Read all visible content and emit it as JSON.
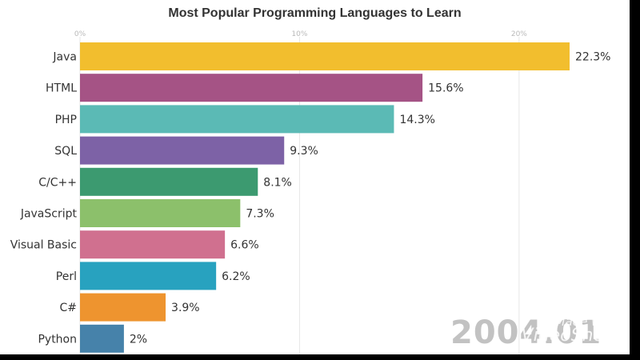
{
  "chart_data": {
    "type": "bar",
    "orientation": "horizontal",
    "title": "Most Popular Programming Languages to Learn",
    "xlabel": "",
    "ylabel": "",
    "xlim": [
      0,
      22.3
    ],
    "x_ticks": [
      "0%",
      "10%",
      "20%"
    ],
    "x_tick_values": [
      0,
      10,
      20
    ],
    "grid": true,
    "categories": [
      "Java",
      "HTML",
      "PHP",
      "SQL",
      "C/C++",
      "JavaScript",
      "Visual Basic",
      "Perl",
      "C#",
      "Python"
    ],
    "values": [
      22.3,
      15.6,
      14.3,
      9.3,
      8.1,
      7.3,
      6.6,
      6.2,
      3.9,
      2
    ],
    "value_labels": [
      "22.3%",
      "15.6%",
      "14.3%",
      "9.3%",
      "8.1%",
      "7.3%",
      "6.6%",
      "6.2%",
      "3.9%",
      "2%"
    ],
    "colors": [
      "#F2BE2E",
      "#A55385",
      "#5BBAB5",
      "#7D62A6",
      "#3C9A70",
      "#8CC06B",
      "#D0708F",
      "#28A2BF",
      "#EE942F",
      "#4682AA"
    ]
  },
  "watermark": {
    "year": "2004.01",
    "brand_line1": "Made with",
    "brand_line2": "VideoShow"
  }
}
